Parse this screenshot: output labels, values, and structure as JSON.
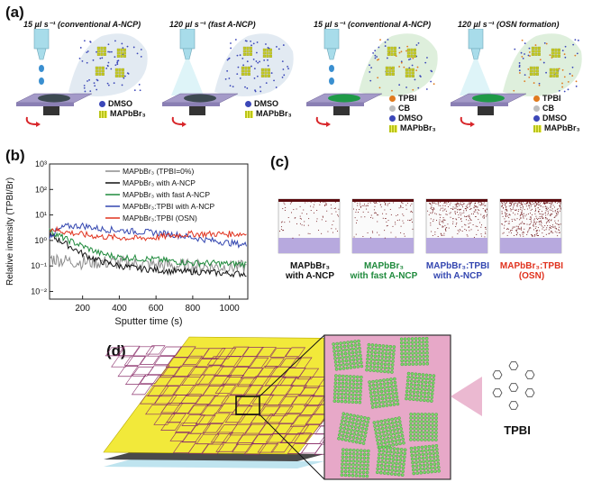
{
  "panel_a": {
    "letter": "(a)",
    "captions": [
      "15 µl s⁻¹ (conventional A-NCP)",
      "120 µl s⁻¹ (fast A-NCP)",
      "15 µl s⁻¹ (conventional A-NCP)",
      "120 µl s⁻¹ (OSN formation)"
    ],
    "legend_basic": [
      "DMSO",
      "MAPbBr₃"
    ],
    "legend_tpbi": [
      "TPBI",
      "CB",
      "DMSO",
      "MAPbBr₃"
    ],
    "colors": {
      "dmso": "#3b47b8",
      "tpbi": "#e07a1e",
      "cb": "#bdbdbd",
      "film_dark": "#3d4a52",
      "film_green": "#1f9a48",
      "substrate": "#a49ac8",
      "tip": "#a8dcea"
    }
  },
  "panel_b": {
    "letter": "(b)",
    "chart_data": {
      "type": "line",
      "xlabel": "Sputter time (s)",
      "ylabel": "Relative intensity (TPBI/Br)",
      "xlim": [
        20,
        1100
      ],
      "ylim": [
        0.005,
        1000
      ],
      "yscale": "log",
      "xticks": [
        200,
        400,
        600,
        800,
        1000
      ],
      "yticks": [
        "10⁻²",
        "10⁻¹",
        "10⁰",
        "10¹",
        "10²",
        "10³"
      ],
      "legend_placement": "top-right",
      "series": [
        {
          "name": "MAPbBr₃ (TPBI=0%)",
          "color": "#8c8c8c",
          "x": [
            20,
            100,
            200,
            300,
            400,
            500,
            600,
            700,
            800,
            900,
            1000,
            1100
          ],
          "y": [
            0.2,
            0.16,
            0.14,
            0.14,
            0.13,
            0.12,
            0.11,
            0.1,
            0.1,
            0.095,
            0.09,
            0.09
          ]
        },
        {
          "name": "MAPbBr₃ with A-NCP",
          "color": "#111111",
          "x": [
            20,
            100,
            200,
            300,
            400,
            500,
            600,
            700,
            800,
            900,
            1000,
            1100
          ],
          "y": [
            1.6,
            0.8,
            0.3,
            0.15,
            0.1,
            0.08,
            0.07,
            0.06,
            0.06,
            0.055,
            0.05,
            0.05
          ]
        },
        {
          "name": "MAPbBr₃ with fast A-NCP",
          "color": "#1f8a3c",
          "x": [
            20,
            100,
            200,
            300,
            400,
            500,
            600,
            700,
            800,
            900,
            1000,
            1100
          ],
          "y": [
            2.5,
            1.2,
            0.6,
            0.3,
            0.22,
            0.2,
            0.18,
            0.15,
            0.13,
            0.13,
            0.12,
            0.12
          ]
        },
        {
          "name": "MAPbBr₃:TPBI with A-NCP",
          "color": "#3346b0",
          "x": [
            20,
            100,
            200,
            300,
            400,
            500,
            600,
            700,
            800,
            900,
            1000,
            1100
          ],
          "y": [
            1.5,
            3.5,
            3.8,
            2.8,
            2.5,
            2.2,
            2.0,
            1.7,
            1.3,
            1.0,
            0.8,
            0.65
          ]
        },
        {
          "name": "MAPbBr₃:TPBI (OSN)",
          "color": "#e0321e",
          "x": [
            20,
            100,
            200,
            300,
            400,
            500,
            600,
            700,
            800,
            900,
            1000,
            1100
          ],
          "y": [
            3.0,
            2.2,
            1.7,
            1.4,
            1.3,
            1.2,
            1.3,
            1.6,
            1.8,
            1.8,
            1.8,
            1.8
          ]
        }
      ]
    }
  },
  "panel_c": {
    "letter": "(c)",
    "labels": [
      {
        "text": "MAPbBr₃\nwith A-NCP",
        "color": "#111111",
        "density": 0.25
      },
      {
        "text": "MAPbBr₃\nwith fast A-NCP",
        "color": "#1f8a3c",
        "density": 0.35
      },
      {
        "text": "MAPbBr₃:TPBI\nwith A-NCP",
        "color": "#3346b0",
        "density": 0.7
      },
      {
        "text": "MAPbBr₃:TPBI\n(OSN)",
        "color": "#e0321e",
        "density": 1.0
      }
    ]
  },
  "panel_d": {
    "letter": "(d)",
    "molecule_label": "TPBI",
    "colors": {
      "film": "#f2e93a",
      "boundary": "#8a2e6a",
      "grain": "#2a9a2a",
      "matrix": "#e7a8c8"
    }
  }
}
